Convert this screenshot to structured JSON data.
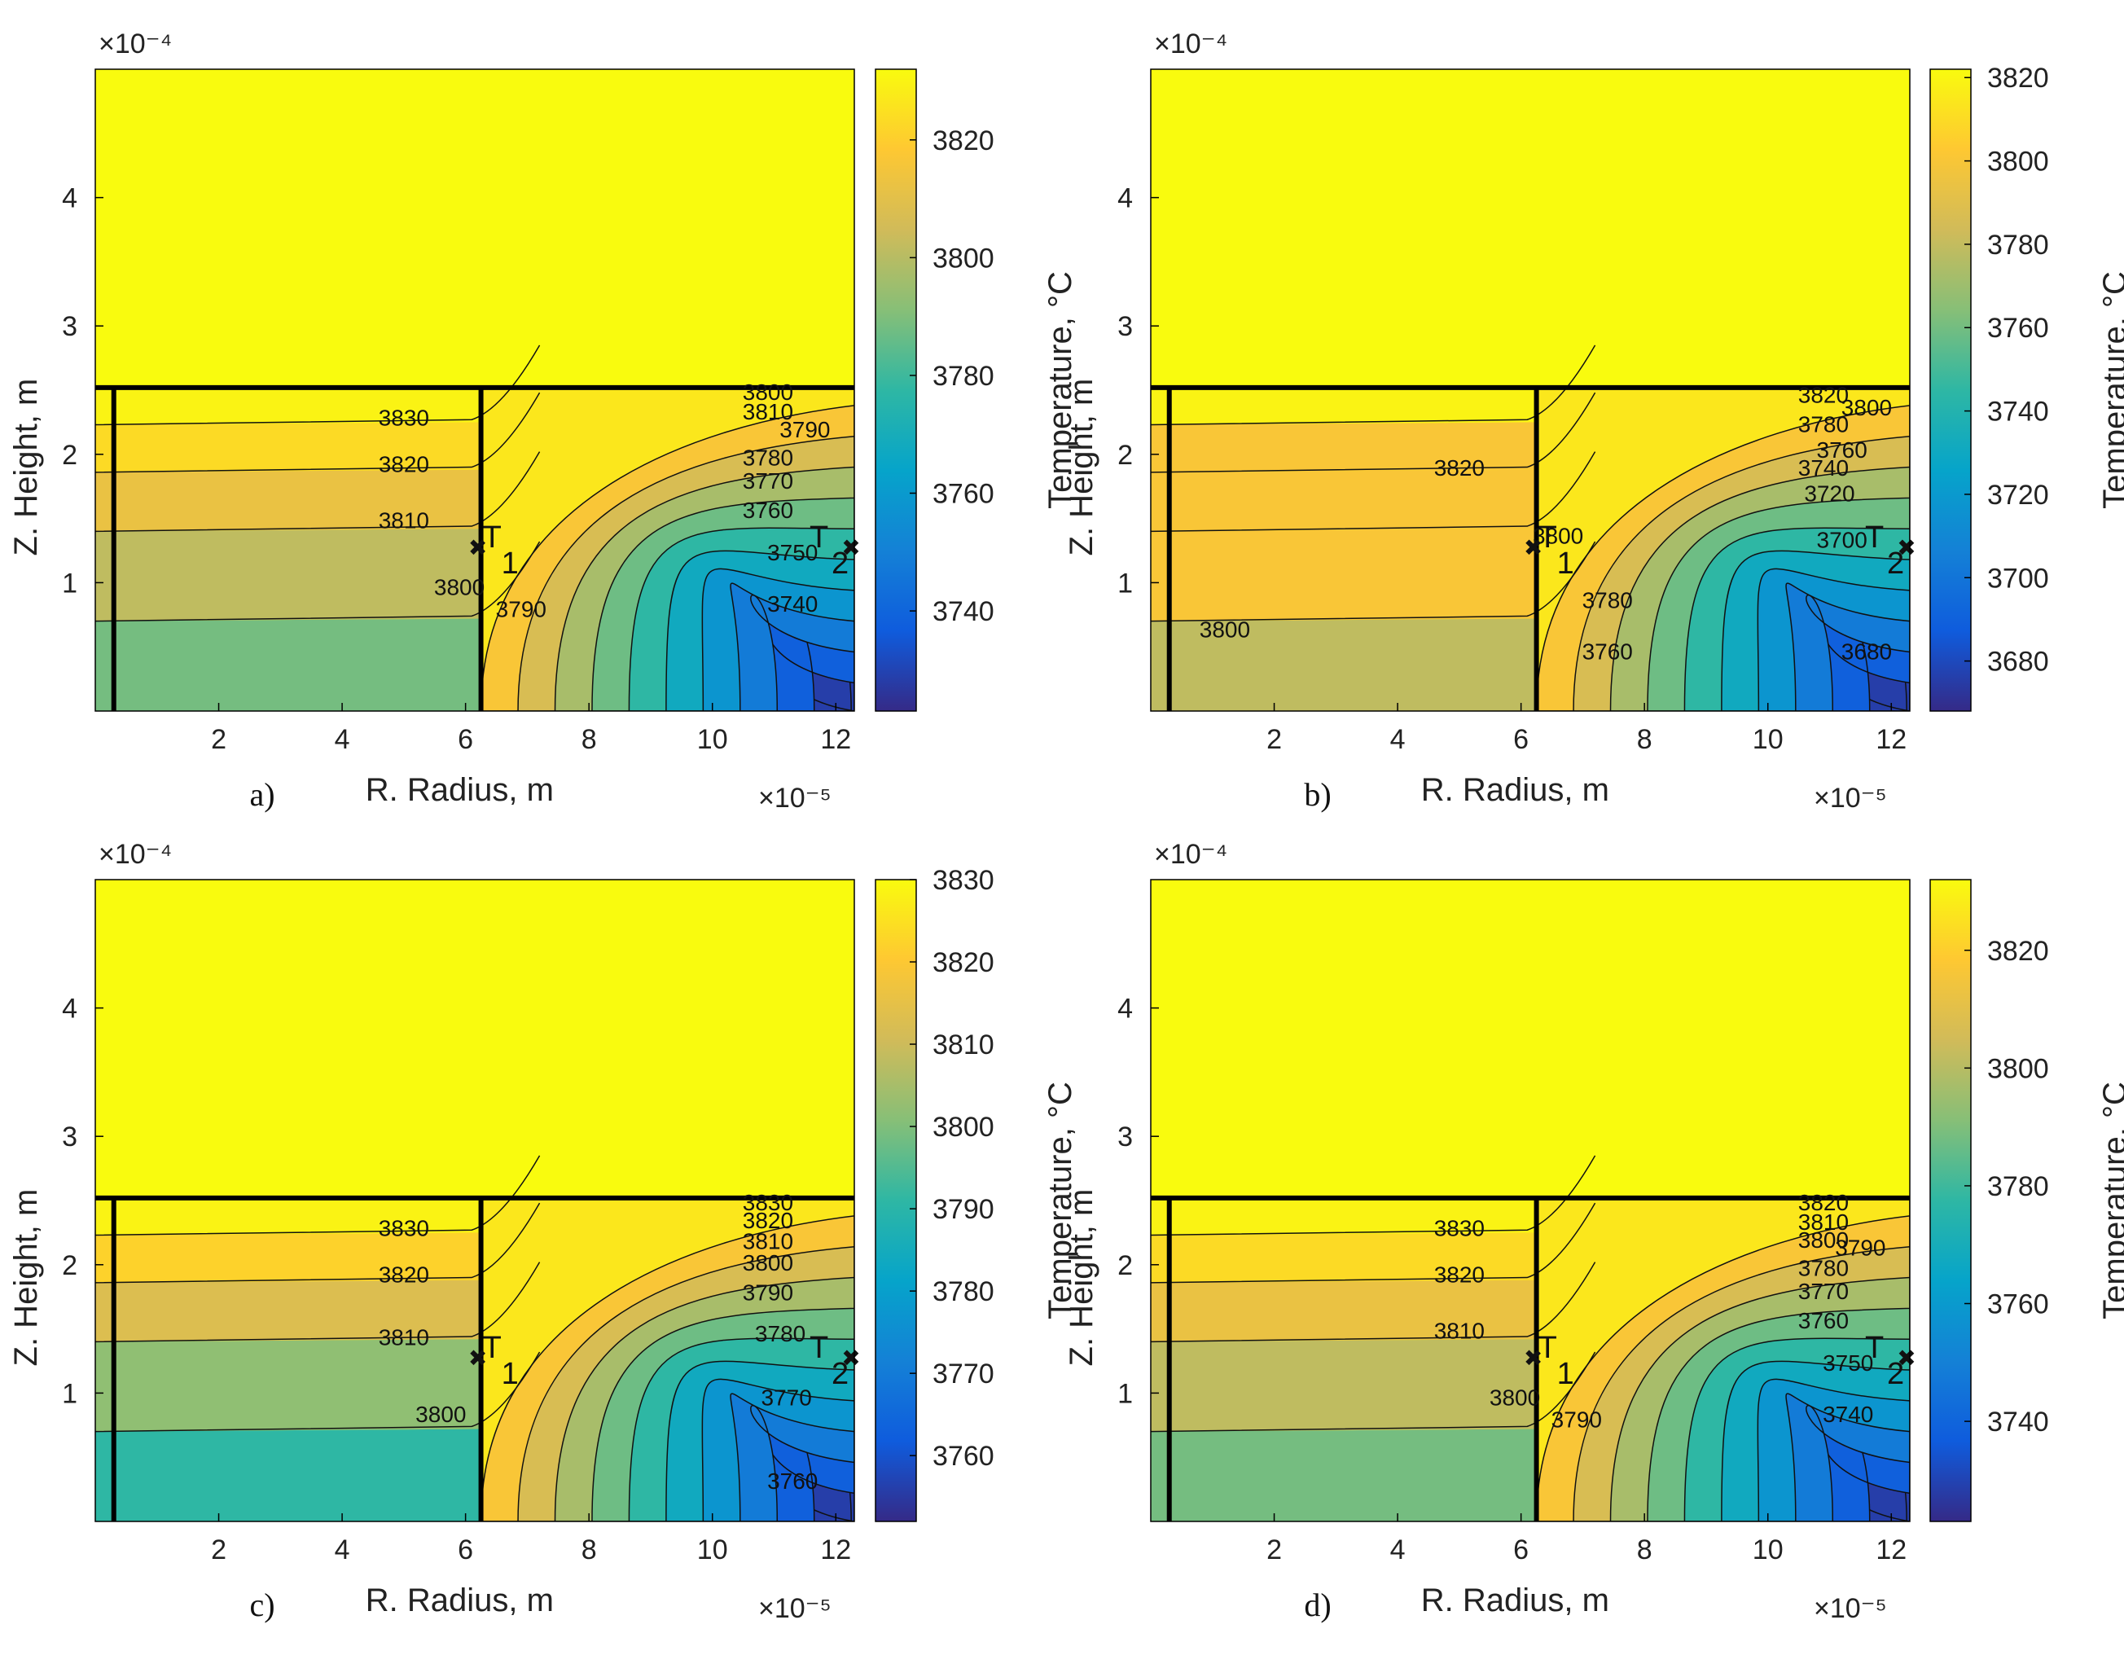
{
  "colors": {
    "parula": [
      "#352a87",
      "#0f5cdd",
      "#1481d6",
      "#06a4ca",
      "#2eb7a4",
      "#87bf77",
      "#d1bb59",
      "#fec832",
      "#f9fb0e"
    ],
    "background": "#ffffff",
    "walls": "#000000"
  },
  "chart_data": [
    {
      "type": "heatmap",
      "panel_label": "a)",
      "xlabel": "R. Radius, m",
      "ylabel": "Z. Height, m",
      "colorbar_label": "Temperature, °C",
      "x_exponent": "×10⁻⁵",
      "y_exponent": "×10⁻⁴",
      "xlim": [
        0,
        12.3
      ],
      "ylim": [
        0,
        5.0
      ],
      "xticks": [
        "2",
        "4",
        "6",
        "8",
        "10",
        "12"
      ],
      "yticks": [
        "1",
        "2",
        "3",
        "4"
      ],
      "clim": [
        3723,
        3832
      ],
      "colorbar_ticks": [
        "3740",
        "3760",
        "3780",
        "3800",
        "3820"
      ],
      "contour_labels": [
        {
          "text": "3830",
          "x": 5.0,
          "y": 2.27
        },
        {
          "text": "3820",
          "x": 5.0,
          "y": 1.91
        },
        {
          "text": "3810",
          "x": 5.0,
          "y": 1.47
        },
        {
          "text": "3800",
          "x": 5.9,
          "y": 0.95
        },
        {
          "text": "3790",
          "x": 6.9,
          "y": 0.78
        },
        {
          "text": "3800",
          "x": 10.9,
          "y": 2.47
        },
        {
          "text": "3810",
          "x": 10.9,
          "y": 2.32
        },
        {
          "text": "3780",
          "x": 10.9,
          "y": 1.96
        },
        {
          "text": "3790",
          "x": 11.5,
          "y": 2.18
        },
        {
          "text": "3770",
          "x": 10.9,
          "y": 1.78
        },
        {
          "text": "3760",
          "x": 10.9,
          "y": 1.55
        },
        {
          "text": "3750",
          "x": 11.3,
          "y": 1.22
        },
        {
          "text": "3740",
          "x": 11.3,
          "y": 0.82
        }
      ],
      "probes": [
        {
          "label": "T",
          "sub": "1",
          "x": 6.25,
          "y": 1.25
        },
        {
          "label": "T",
          "sub": "2",
          "x": 12.3,
          "y": 1.25
        }
      ]
    },
    {
      "type": "heatmap",
      "panel_label": "b)",
      "xlabel": "R. Radius, m",
      "ylabel": "Z. Height, m",
      "colorbar_label": "Temperature, °C",
      "x_exponent": "×10⁻⁵",
      "y_exponent": "×10⁻⁴",
      "xlim": [
        0,
        12.3
      ],
      "ylim": [
        0,
        5.0
      ],
      "xticks": [
        "2",
        "4",
        "6",
        "8",
        "10",
        "12"
      ],
      "yticks": [
        "1",
        "2",
        "3",
        "4"
      ],
      "clim": [
        3668,
        3822
      ],
      "colorbar_ticks": [
        "3680",
        "3700",
        "3720",
        "3740",
        "3760",
        "3780",
        "3800",
        "3820"
      ],
      "contour_labels": [
        {
          "text": "3820",
          "x": 5.0,
          "y": 1.88
        },
        {
          "text": "3800",
          "x": 1.2,
          "y": 0.62
        },
        {
          "text": "3800",
          "x": 6.6,
          "y": 1.35
        },
        {
          "text": "3780",
          "x": 7.4,
          "y": 0.85
        },
        {
          "text": "3760",
          "x": 7.4,
          "y": 0.45
        },
        {
          "text": "3820",
          "x": 10.9,
          "y": 2.45
        },
        {
          "text": "3800",
          "x": 11.6,
          "y": 2.35
        },
        {
          "text": "3780",
          "x": 10.9,
          "y": 2.22
        },
        {
          "text": "3760",
          "x": 11.2,
          "y": 2.02
        },
        {
          "text": "3740",
          "x": 10.9,
          "y": 1.88
        },
        {
          "text": "3720",
          "x": 11.0,
          "y": 1.68
        },
        {
          "text": "3700",
          "x": 11.2,
          "y": 1.32
        },
        {
          "text": "3680",
          "x": 11.6,
          "y": 0.45
        }
      ],
      "probes": [
        {
          "label": "T",
          "sub": "1",
          "x": 6.25,
          "y": 1.25
        },
        {
          "label": "T",
          "sub": "2",
          "x": 12.3,
          "y": 1.25
        }
      ]
    },
    {
      "type": "heatmap",
      "panel_label": "c)",
      "xlabel": "R. Radius, m",
      "ylabel": "Z. Height, m",
      "colorbar_label": "Temperature, °C",
      "x_exponent": "×10⁻⁵",
      "y_exponent": "×10⁻⁴",
      "xlim": [
        0,
        12.3
      ],
      "ylim": [
        0,
        5.0
      ],
      "xticks": [
        "2",
        "4",
        "6",
        "8",
        "10",
        "12"
      ],
      "yticks": [
        "1",
        "2",
        "3",
        "4"
      ],
      "clim": [
        3752,
        3830
      ],
      "colorbar_ticks": [
        "3760",
        "3770",
        "3780",
        "3790",
        "3800",
        "3810",
        "3820",
        "3830"
      ],
      "contour_labels": [
        {
          "text": "3830",
          "x": 5.0,
          "y": 2.27
        },
        {
          "text": "3820",
          "x": 5.0,
          "y": 1.91
        },
        {
          "text": "3810",
          "x": 5.0,
          "y": 1.42
        },
        {
          "text": "3800",
          "x": 5.6,
          "y": 0.82
        },
        {
          "text": "3830",
          "x": 10.9,
          "y": 2.47
        },
        {
          "text": "3820",
          "x": 10.9,
          "y": 2.33
        },
        {
          "text": "3810",
          "x": 10.9,
          "y": 2.17
        },
        {
          "text": "3800",
          "x": 10.9,
          "y": 2.0
        },
        {
          "text": "3790",
          "x": 10.9,
          "y": 1.77
        },
        {
          "text": "3780",
          "x": 11.1,
          "y": 1.45
        },
        {
          "text": "3770",
          "x": 11.2,
          "y": 0.95
        },
        {
          "text": "3760",
          "x": 11.3,
          "y": 0.3
        }
      ],
      "probes": [
        {
          "label": "T",
          "sub": "1",
          "x": 6.25,
          "y": 1.25
        },
        {
          "label": "T",
          "sub": "2",
          "x": 12.3,
          "y": 1.25
        }
      ]
    },
    {
      "type": "heatmap",
      "panel_label": "d)",
      "xlabel": "R. Radius, m",
      "ylabel": "Z. Height, m",
      "colorbar_label": "Temperature, °C",
      "x_exponent": "×10⁻⁵",
      "y_exponent": "×10⁻⁴",
      "xlim": [
        0,
        12.3
      ],
      "ylim": [
        0,
        5.0
      ],
      "xticks": [
        "2",
        "4",
        "6",
        "8",
        "10",
        "12"
      ],
      "yticks": [
        "1",
        "2",
        "3",
        "4"
      ],
      "clim": [
        3723,
        3832
      ],
      "colorbar_ticks": [
        "3740",
        "3760",
        "3780",
        "3800",
        "3820"
      ],
      "contour_labels": [
        {
          "text": "3830",
          "x": 5.0,
          "y": 2.27
        },
        {
          "text": "3820",
          "x": 5.0,
          "y": 1.91
        },
        {
          "text": "3810",
          "x": 5.0,
          "y": 1.47
        },
        {
          "text": "3800",
          "x": 5.9,
          "y": 0.95
        },
        {
          "text": "3790",
          "x": 6.9,
          "y": 0.78
        },
        {
          "text": "3820",
          "x": 10.9,
          "y": 2.47
        },
        {
          "text": "3810",
          "x": 10.9,
          "y": 2.32
        },
        {
          "text": "3800",
          "x": 10.9,
          "y": 2.18
        },
        {
          "text": "3790",
          "x": 11.5,
          "y": 2.12
        },
        {
          "text": "3780",
          "x": 10.9,
          "y": 1.96
        },
        {
          "text": "3770",
          "x": 10.9,
          "y": 1.78
        },
        {
          "text": "3760",
          "x": 10.9,
          "y": 1.55
        },
        {
          "text": "3750",
          "x": 11.3,
          "y": 1.22
        },
        {
          "text": "3740",
          "x": 11.3,
          "y": 0.82
        }
      ],
      "probes": [
        {
          "label": "T",
          "sub": "1",
          "x": 6.25,
          "y": 1.25
        },
        {
          "label": "T",
          "sub": "2",
          "x": 12.3,
          "y": 1.25
        }
      ]
    }
  ]
}
